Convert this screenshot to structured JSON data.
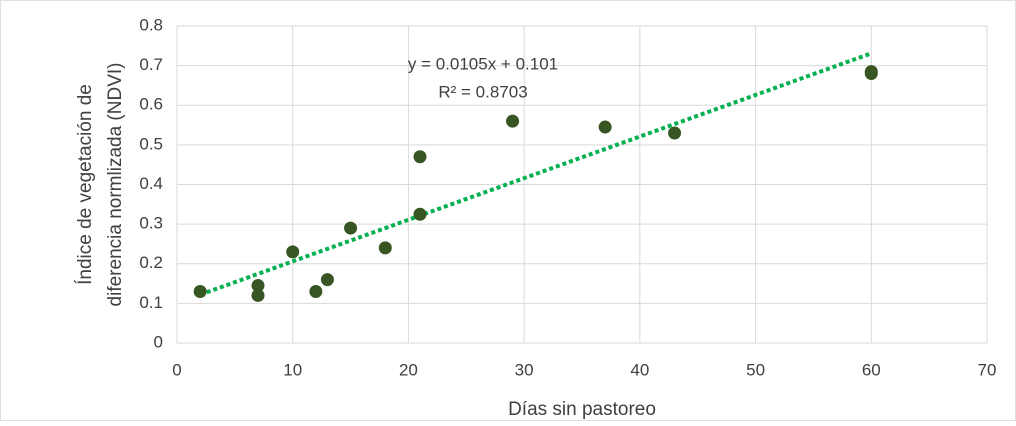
{
  "chart_data": {
    "type": "scatter",
    "x_label": "Días sin pastoreo",
    "y_label": [
      "Índice de vegetación de",
      "diferencia normlizada (NDVI)"
    ],
    "annotations": [
      "y = 0.0105x + 0.101",
      "R² = 0.8703"
    ],
    "series": [
      {
        "color": "#375623",
        "x": [
          2,
          7,
          7,
          10,
          12,
          13,
          15,
          18,
          21,
          21,
          29,
          37,
          43,
          60,
          60
        ],
        "values": [
          0.13,
          0.145,
          0.12,
          0.23,
          0.13,
          0.16,
          0.29,
          0.24,
          0.47,
          0.325,
          0.56,
          0.545,
          0.53,
          0.685,
          0.68
        ]
      }
    ],
    "trendline": {
      "color": "#00b050",
      "x": [
        2,
        60
      ],
      "values": [
        0.122,
        0.731
      ]
    },
    "xlim": [
      0,
      70
    ],
    "xticks": [
      0,
      10,
      20,
      30,
      40,
      50,
      60,
      70
    ],
    "ylim": [
      0,
      0.8
    ],
    "yticks": [
      0,
      0.1,
      0.2,
      0.3,
      0.4,
      0.5,
      0.6,
      0.7,
      0.8
    ],
    "grid": true
  }
}
